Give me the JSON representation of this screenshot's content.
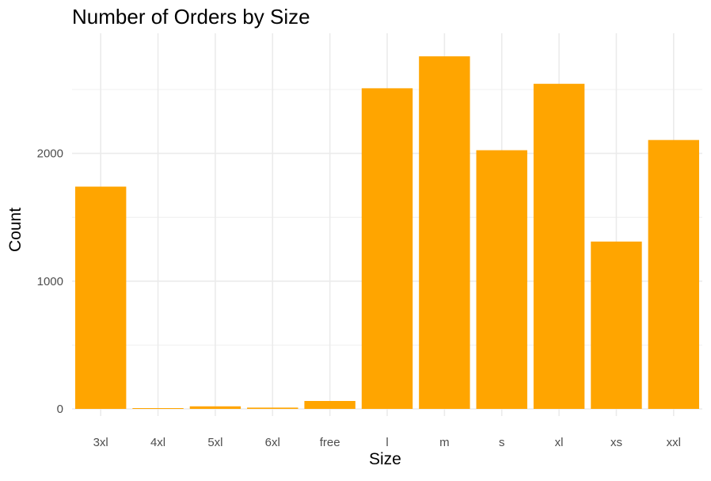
{
  "chart_data": {
    "type": "bar",
    "title": "Number of Orders by Size",
    "xlabel": "Size",
    "ylabel": "Count",
    "categories": [
      "3xl",
      "4xl",
      "5xl",
      "6xl",
      "free",
      "l",
      "m",
      "s",
      "xl",
      "xs",
      "xxl"
    ],
    "values": [
      1740,
      5,
      20,
      10,
      62,
      2510,
      2760,
      2025,
      2545,
      1310,
      2105
    ],
    "ylim": [
      0,
      2830
    ],
    "yticks": [
      0,
      1000,
      2000
    ],
    "ytick_labels": [
      "0",
      "1000",
      "2000"
    ],
    "minor_yticks": [
      500,
      1500,
      2500
    ],
    "grid": true,
    "legend": "none",
    "bar_color": "#FFA500",
    "grid_color": "#EBEBEB"
  }
}
